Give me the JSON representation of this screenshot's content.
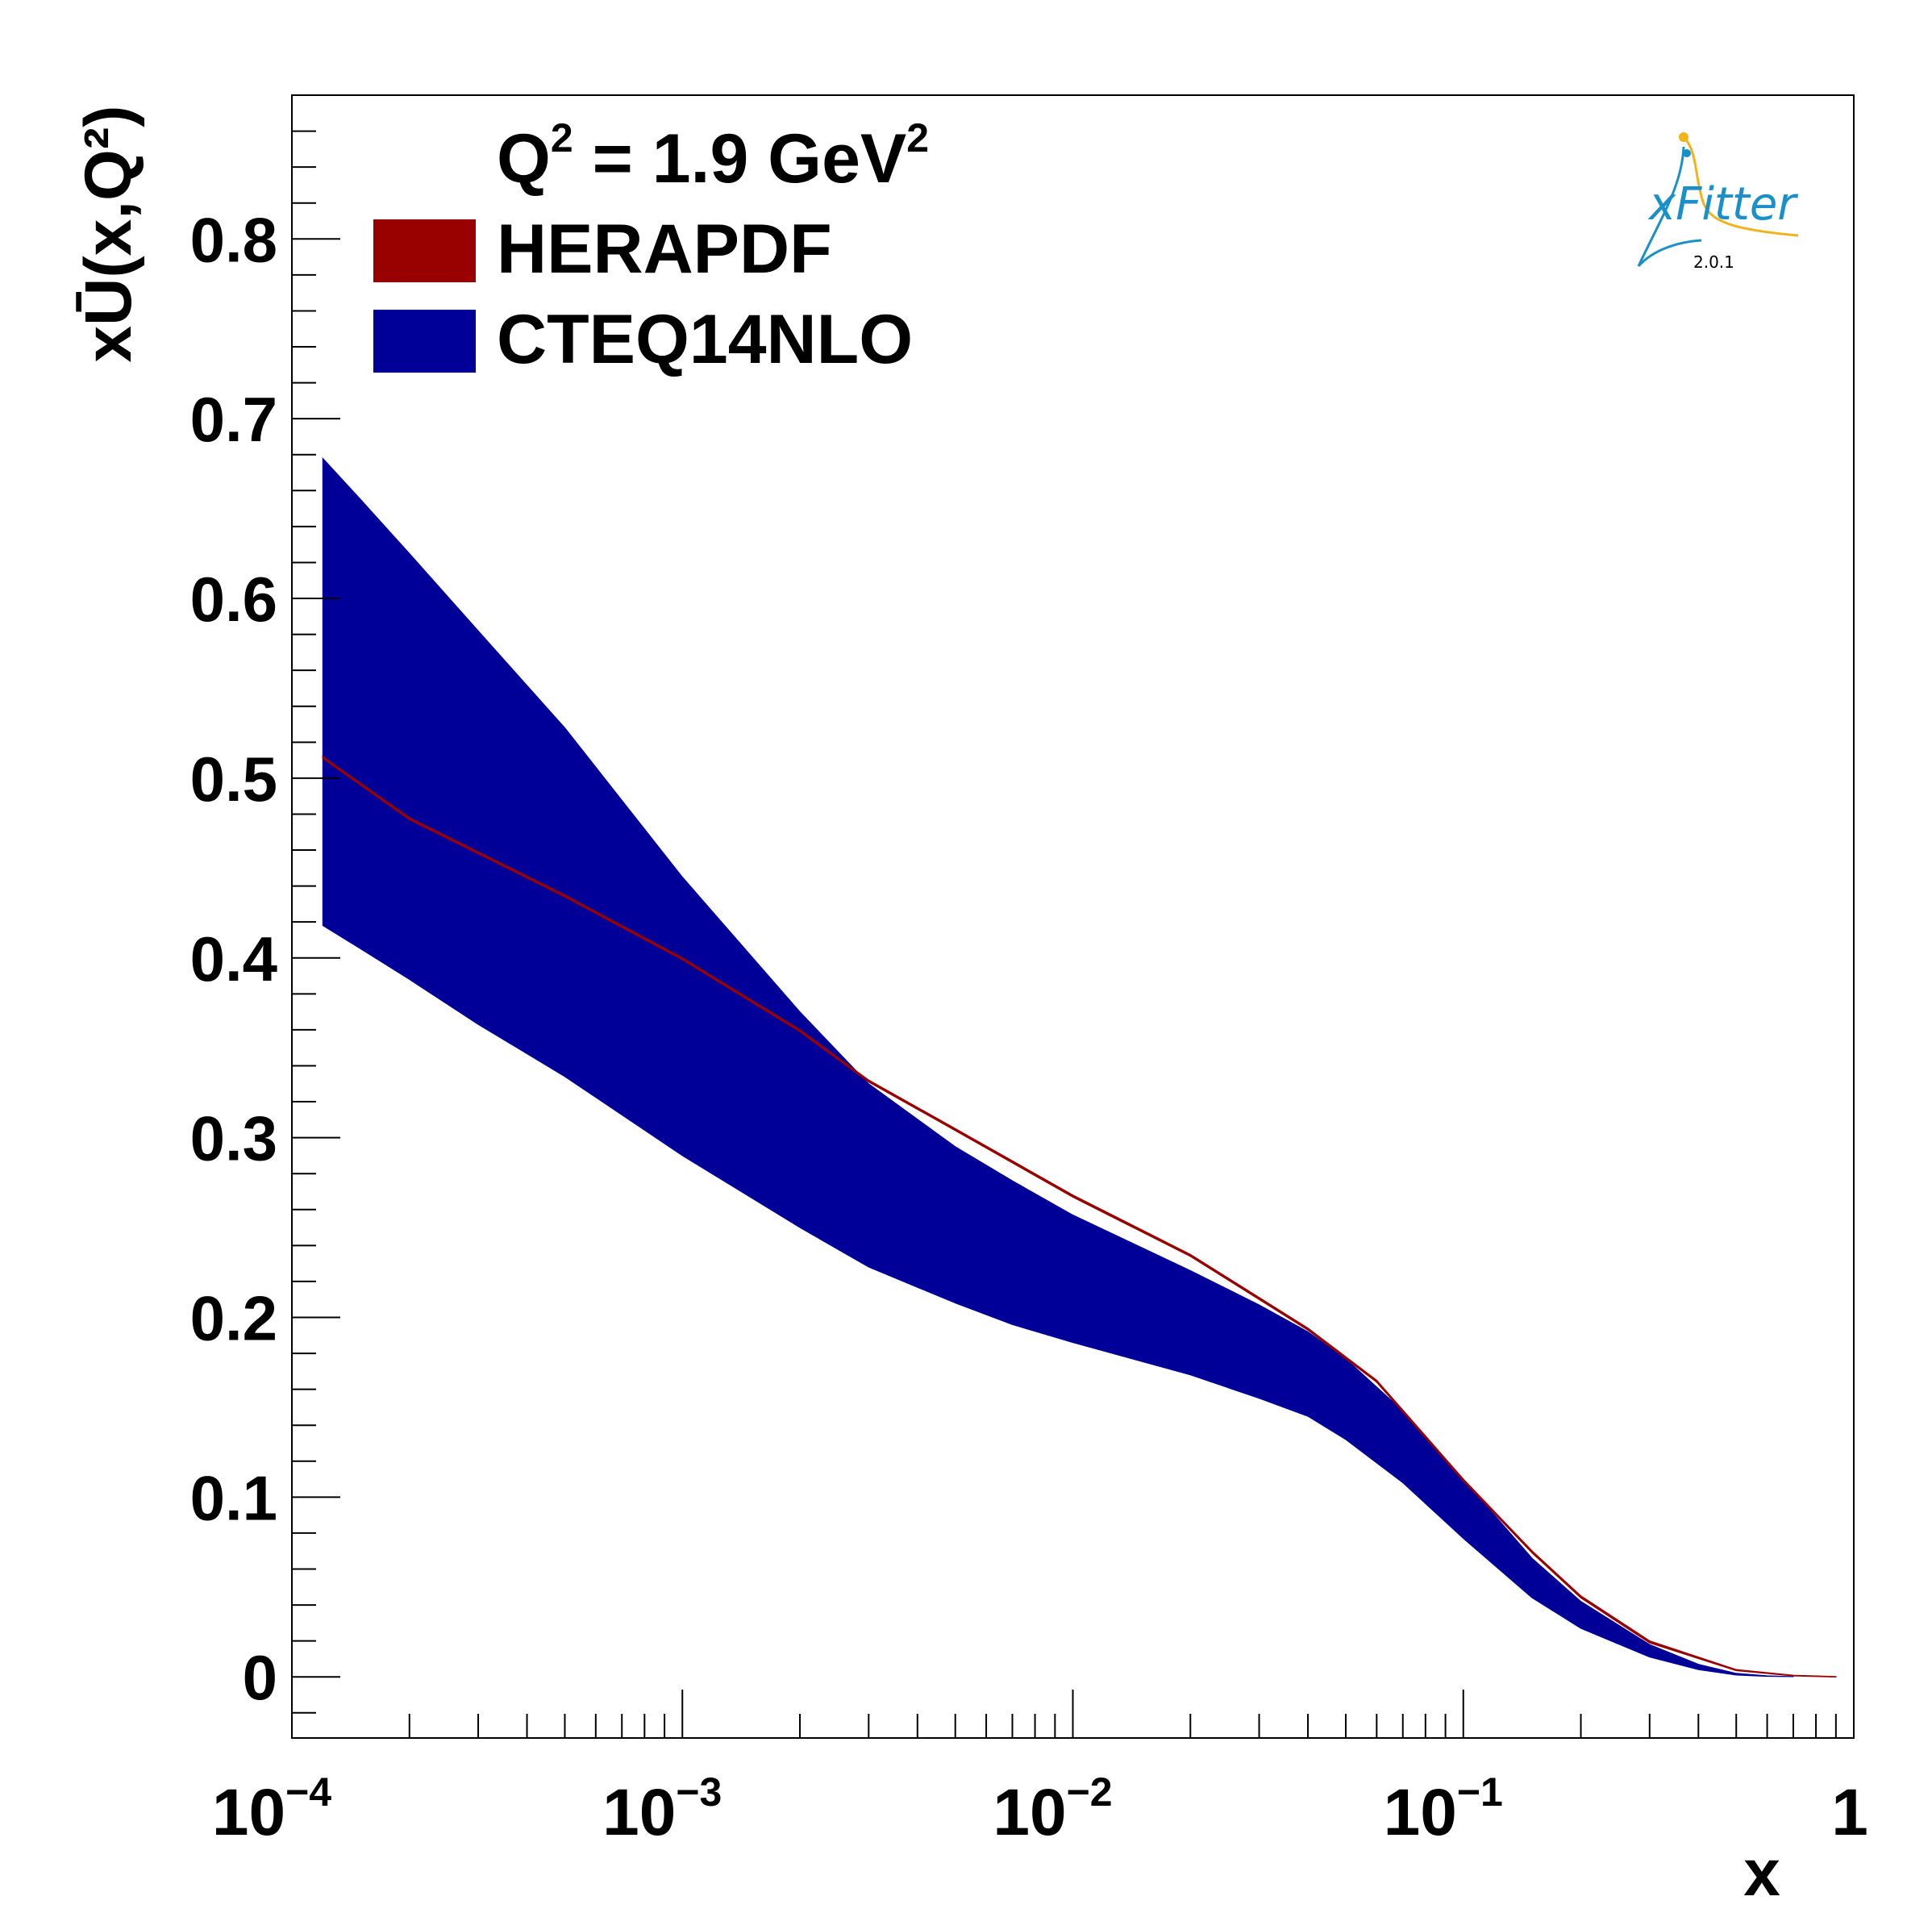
{
  "chart_data": {
    "type": "area",
    "xscale": "log",
    "xlim": [
      0.0001,
      1
    ],
    "ylim": [
      -0.034,
      0.88
    ],
    "xlabel": "x",
    "ylabel": "xŪ(x,Q²)",
    "x_tick_labels": [
      {
        "x": 0.0001,
        "base": "10",
        "exp": "−4"
      },
      {
        "x": 0.001,
        "base": "10",
        "exp": "−3"
      },
      {
        "x": 0.01,
        "base": "10",
        "exp": "−2"
      },
      {
        "x": 0.1,
        "base": "10",
        "exp": "−1"
      },
      {
        "x": 1,
        "base": "1",
        "exp": ""
      }
    ],
    "y_ticks": [
      0,
      0.1,
      0.2,
      0.3,
      0.4,
      0.5,
      0.6,
      0.7,
      0.8
    ],
    "y_tick_labels": [
      "0",
      "0.1",
      "0.2",
      "0.3",
      "0.4",
      "0.5",
      "0.6",
      "0.7",
      "0.8"
    ],
    "annotation": {
      "base": "Q",
      "sup1": "2",
      "mid": " = 1.9 GeV",
      "sup2": "2"
    },
    "legend_position": "top-left",
    "series": [
      {
        "name": "HERAPDF",
        "color": "#990000",
        "x": [
          0.00012,
          0.0002,
          0.0005,
          0.001,
          0.002,
          0.003,
          0.005,
          0.01,
          0.02,
          0.04,
          0.06,
          0.1,
          0.15,
          0.2,
          0.3,
          0.5,
          0.7,
          0.9
        ],
        "upper": [
          0.512,
          0.478,
          0.435,
          0.4,
          0.36,
          0.332,
          0.305,
          0.268,
          0.235,
          0.194,
          0.165,
          0.11,
          0.07,
          0.045,
          0.02,
          0.004,
          0.0008,
          0.0001
        ],
        "lower": [
          0.511,
          0.477,
          0.434,
          0.399,
          0.359,
          0.331,
          0.304,
          0.267,
          0.234,
          0.193,
          0.164,
          0.109,
          0.069,
          0.044,
          0.019,
          0.0035,
          0.0006,
          0.0
        ]
      },
      {
        "name": "CTEQ14NLO",
        "color": "#000099",
        "x": [
          0.00012,
          0.00015,
          0.0002,
          0.0003,
          0.0005,
          0.001,
          0.002,
          0.003,
          0.005,
          0.007,
          0.01,
          0.02,
          0.03,
          0.04,
          0.05,
          0.07,
          0.1,
          0.15,
          0.2,
          0.3,
          0.4,
          0.5,
          0.6,
          0.7
        ],
        "upper": [
          0.678,
          0.655,
          0.625,
          0.582,
          0.528,
          0.445,
          0.37,
          0.33,
          0.295,
          0.276,
          0.257,
          0.226,
          0.207,
          0.192,
          0.177,
          0.148,
          0.11,
          0.066,
          0.042,
          0.018,
          0.007,
          0.002,
          0.0006,
          0.0002
        ],
        "lower": [
          0.418,
          0.405,
          0.388,
          0.363,
          0.334,
          0.29,
          0.25,
          0.228,
          0.208,
          0.196,
          0.186,
          0.168,
          0.155,
          0.145,
          0.132,
          0.108,
          0.077,
          0.044,
          0.027,
          0.011,
          0.004,
          0.001,
          0.0003,
          0.0001
        ]
      }
    ],
    "logo": {
      "text": "xFitter",
      "version": "2.0.1"
    }
  }
}
